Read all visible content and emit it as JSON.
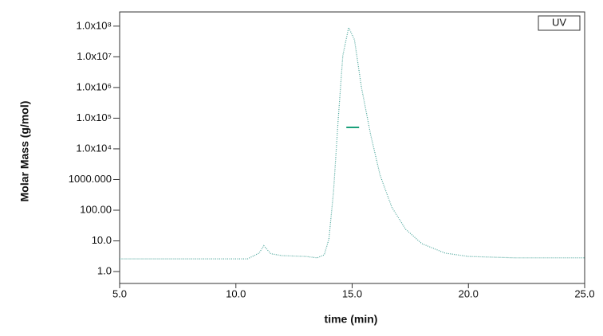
{
  "chart_data": {
    "type": "line",
    "xlabel": "time (min)",
    "ylabel": "Molar Mass (g/mol)",
    "log_y": true,
    "xlim": [
      5,
      25
    ],
    "xticks": [
      {
        "value": 5,
        "label": "5.0"
      },
      {
        "value": 10,
        "label": "10.0"
      },
      {
        "value": 15,
        "label": "15.0"
      },
      {
        "value": 20,
        "label": "20.0"
      },
      {
        "value": 25,
        "label": "25.0"
      }
    ],
    "ylim": [
      0.41,
      290000000
    ],
    "yticks": [
      {
        "value": 1,
        "label": "1.0"
      },
      {
        "value": 10,
        "label": "10.0"
      },
      {
        "value": 100,
        "label": "100.00"
      },
      {
        "value": 1000,
        "label": "1000.000"
      },
      {
        "value": 10000,
        "label": "1.0x10⁴"
      },
      {
        "value": 100000,
        "label": "1.0x10⁵"
      },
      {
        "value": 1000000,
        "label": "1.0x10⁶"
      },
      {
        "value": 10000000,
        "label": "1.0x10⁷"
      },
      {
        "value": 100000000,
        "label": "1.0x10⁸"
      }
    ],
    "legend": "top-right",
    "series": [
      {
        "name": "UV",
        "color": "#4aa59a",
        "x": [
          5.0,
          10.5,
          11.0,
          11.2,
          11.5,
          12.0,
          13.0,
          13.5,
          13.8,
          14.0,
          14.2,
          14.4,
          14.6,
          14.85,
          15.1,
          15.4,
          15.8,
          16.2,
          16.7,
          17.3,
          18.0,
          19.0,
          20.0,
          22.0,
          25.0
        ],
        "values": [
          2.6,
          2.6,
          4.0,
          7.0,
          3.8,
          3.3,
          3.1,
          2.8,
          3.5,
          11.6,
          420,
          90000,
          11000000,
          90000000,
          36000000,
          1000000,
          28000,
          1400,
          127,
          24,
          8.1,
          4.0,
          3.1,
          2.8,
          2.8
        ]
      },
      {
        "color": "#1aa07a",
        "x": [
          14.75,
          15.3
        ],
        "values": [
          50000,
          50000
        ]
      }
    ]
  }
}
